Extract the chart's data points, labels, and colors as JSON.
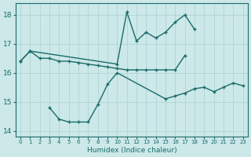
{
  "xlabel": "Humidex (Indice chaleur)",
  "x": [
    0,
    1,
    2,
    3,
    4,
    5,
    6,
    7,
    8,
    9,
    10,
    11,
    12,
    13,
    14,
    15,
    16,
    17,
    18,
    19,
    20,
    21,
    22,
    23
  ],
  "line_flat": [
    16.4,
    16.75,
    16.5,
    16.5,
    16.4,
    16.4,
    16.35,
    16.3,
    16.25,
    16.2,
    16.15,
    16.1,
    16.1,
    16.1,
    16.1,
    16.1,
    16.1,
    16.6,
    null,
    null,
    null,
    null,
    null,
    null
  ],
  "line_upper": [
    16.4,
    16.75,
    null,
    null,
    null,
    null,
    null,
    null,
    null,
    null,
    16.3,
    18.1,
    17.1,
    17.4,
    17.2,
    17.4,
    17.75,
    18.0,
    17.5,
    null,
    null,
    null,
    null,
    null
  ],
  "line_lower": [
    null,
    null,
    null,
    14.8,
    14.4,
    14.3,
    14.3,
    14.3,
    14.9,
    15.6,
    16.0,
    null,
    null,
    null,
    null,
    15.1,
    15.2,
    15.3,
    15.45,
    15.5,
    15.35,
    15.5,
    15.65,
    15.55
  ],
  "ylim": [
    13.8,
    18.4
  ],
  "yticks": [
    14,
    15,
    16,
    17,
    18
  ],
  "bg_color": "#cce8e8",
  "line_color": "#1a6b6b",
  "grid_color": "#b8d8d8",
  "figsize": [
    3.2,
    2.0
  ],
  "dpi": 100
}
